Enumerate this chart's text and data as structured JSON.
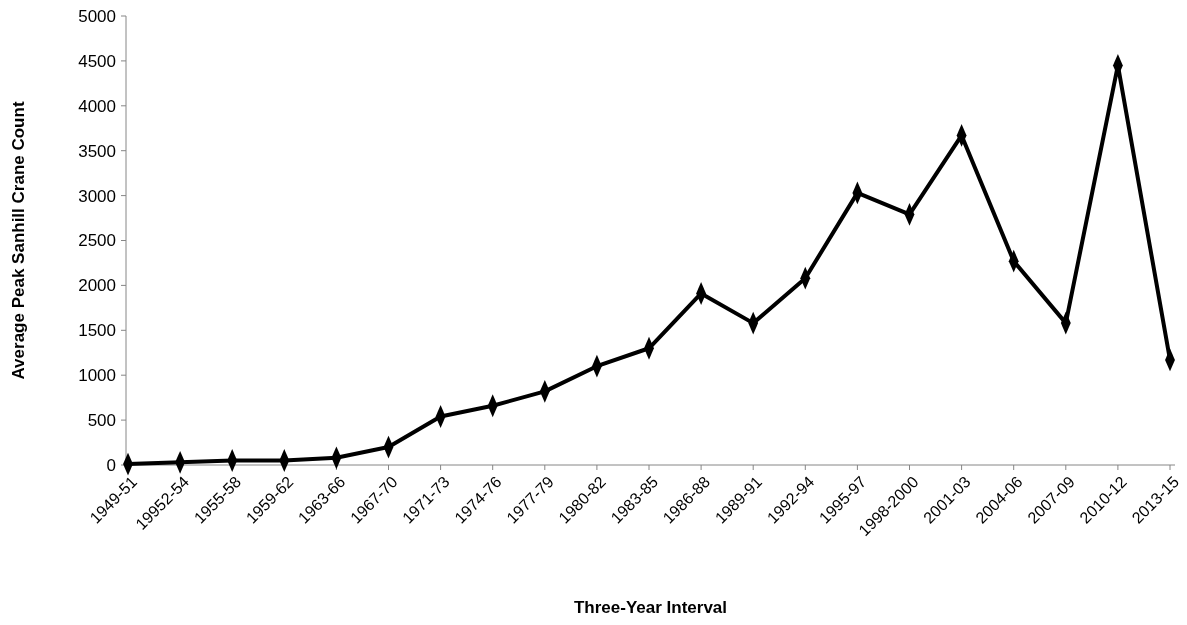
{
  "chart_data": {
    "type": "line",
    "xlabel": "Three-Year Interval",
    "ylabel": "Average Peak Sanhill Crane Count",
    "categories": [
      "1949-51",
      "19952-54",
      "1955-58",
      "1959-62",
      "1963-66",
      "1967-70",
      "1971-73",
      "1974-76",
      "1977-79",
      "1980-82",
      "1983-85",
      "1986-88",
      "1989-91",
      "1992-94",
      "1995-97",
      "1998-2000",
      "2001-03",
      "2004-06",
      "2007-09",
      "2010-12",
      "2013-15"
    ],
    "series": [
      {
        "color": "#000000",
        "values": [
          10,
          30,
          50,
          50,
          80,
          200,
          540,
          660,
          820,
          1100,
          1300,
          1910,
          1580,
          2080,
          3030,
          2790,
          3670,
          2270,
          1580,
          4450,
          1170
        ]
      }
    ],
    "ylim": [
      0,
      5000
    ],
    "yticks": [
      0,
      500,
      1000,
      1500,
      2000,
      2500,
      3000,
      3500,
      4000,
      4500,
      5000
    ],
    "grid": false,
    "marker": "diamond",
    "line_style": "solid"
  }
}
